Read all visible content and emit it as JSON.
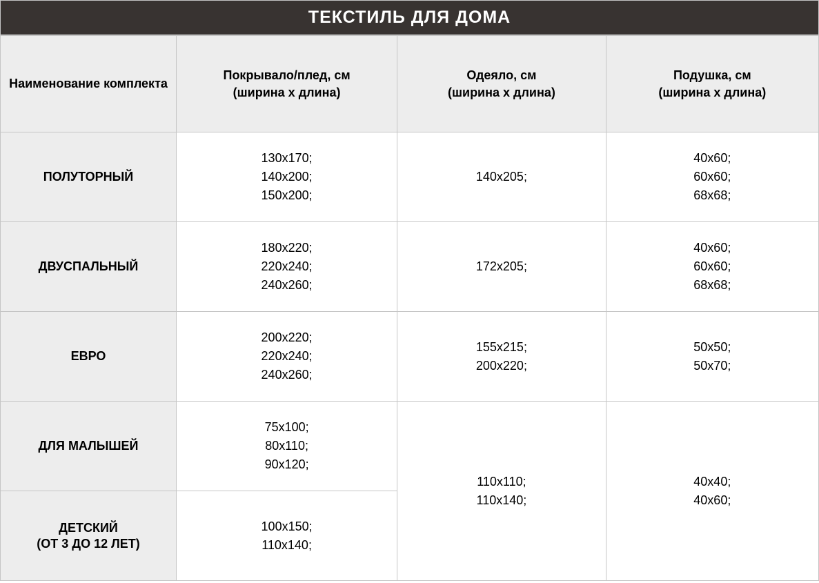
{
  "title": "ТЕКСТИЛЬ ДЛЯ ДОМА",
  "columns": [
    "Наименование комплекта",
    "Покрывало/плед, см (ширина х длина)",
    "Одеяло, см (ширина х длина)",
    "Подушка, см (ширина х длина)"
  ],
  "col_widths_pct": [
    21.5,
    27,
    25.5,
    26
  ],
  "header_bg": "#ededed",
  "title_bg": "#383331",
  "title_color": "#ffffff",
  "border_color": "#c5c5c5",
  "cell_bg": "#ffffff",
  "text_color": "#000000",
  "header_fontsize": 18,
  "title_fontsize": 25,
  "cell_fontsize": 18,
  "rows": [
    {
      "label": "ПОЛУТОРНЫЙ",
      "cover": "130х170;\n140х200;\n150х200;",
      "blanket": "140х205;",
      "pillow": "40х60;\n60х60;\n68х68;"
    },
    {
      "label": "ДВУСПАЛЬНЫЙ",
      "cover": "180х220;\n220х240;\n240х260;",
      "blanket": "172х205;",
      "pillow": "40х60;\n60х60;\n68х68;"
    },
    {
      "label": "ЕВРО",
      "cover": "200х220;\n220х240;\n240х260;",
      "blanket": "155х215;\n200х220;",
      "pillow": "50х50;\n50х70;"
    },
    {
      "label": "ДЛЯ МАЛЫШЕЙ",
      "cover": "75х100;\n80х110;\n90х120;",
      "blanket_merged": "110х110;\n110х140;",
      "pillow_merged": "40х40;\n40х60;"
    },
    {
      "label": "ДЕТСКИЙ\n(ОТ 3 ДО 12 ЛЕТ)",
      "cover": "100х150;\n110х140;"
    }
  ]
}
